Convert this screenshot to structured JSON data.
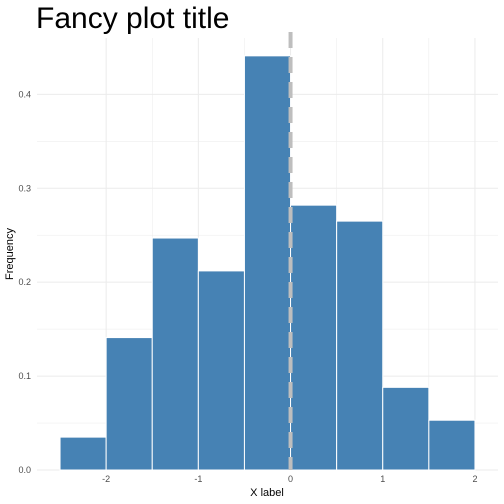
{
  "chart_data": {
    "type": "bar",
    "title": "Fancy plot title",
    "xlabel": "X label",
    "ylabel": "Frequency",
    "bins": [
      {
        "x0": -2.5,
        "x1": -2.0,
        "value": 0.035
      },
      {
        "x0": -2.0,
        "x1": -1.5,
        "value": 0.141
      },
      {
        "x0": -1.5,
        "x1": -1.0,
        "value": 0.247
      },
      {
        "x0": -1.0,
        "x1": -0.5,
        "value": 0.212
      },
      {
        "x0": -0.5,
        "x1": 0.0,
        "value": 0.441
      },
      {
        "x0": 0.0,
        "x1": 0.5,
        "value": 0.282
      },
      {
        "x0": 0.5,
        "x1": 1.0,
        "value": 0.265
      },
      {
        "x0": 1.0,
        "x1": 1.5,
        "value": 0.088
      },
      {
        "x0": 1.5,
        "x1": 2.0,
        "value": 0.053
      }
    ],
    "vline": {
      "x": 0,
      "style": "dashed",
      "color": "#bebebe"
    },
    "xlim": [
      -2.75,
      2.25
    ],
    "ylim": [
      0,
      0.46
    ],
    "xticks": [
      -2,
      -1,
      0,
      1,
      2
    ],
    "xtick_labels": [
      "-2",
      "-1",
      "0",
      "1",
      "2"
    ],
    "yticks": [
      0,
      0.1,
      0.2,
      0.3,
      0.4
    ],
    "ytick_labels": [
      "0.0",
      "0.1",
      "0.2",
      "0.3",
      "0.4"
    ],
    "grid": true,
    "bar_fill": "#4682b4",
    "bar_edge": "#ffffff",
    "grid_color": "#ebebeb"
  }
}
